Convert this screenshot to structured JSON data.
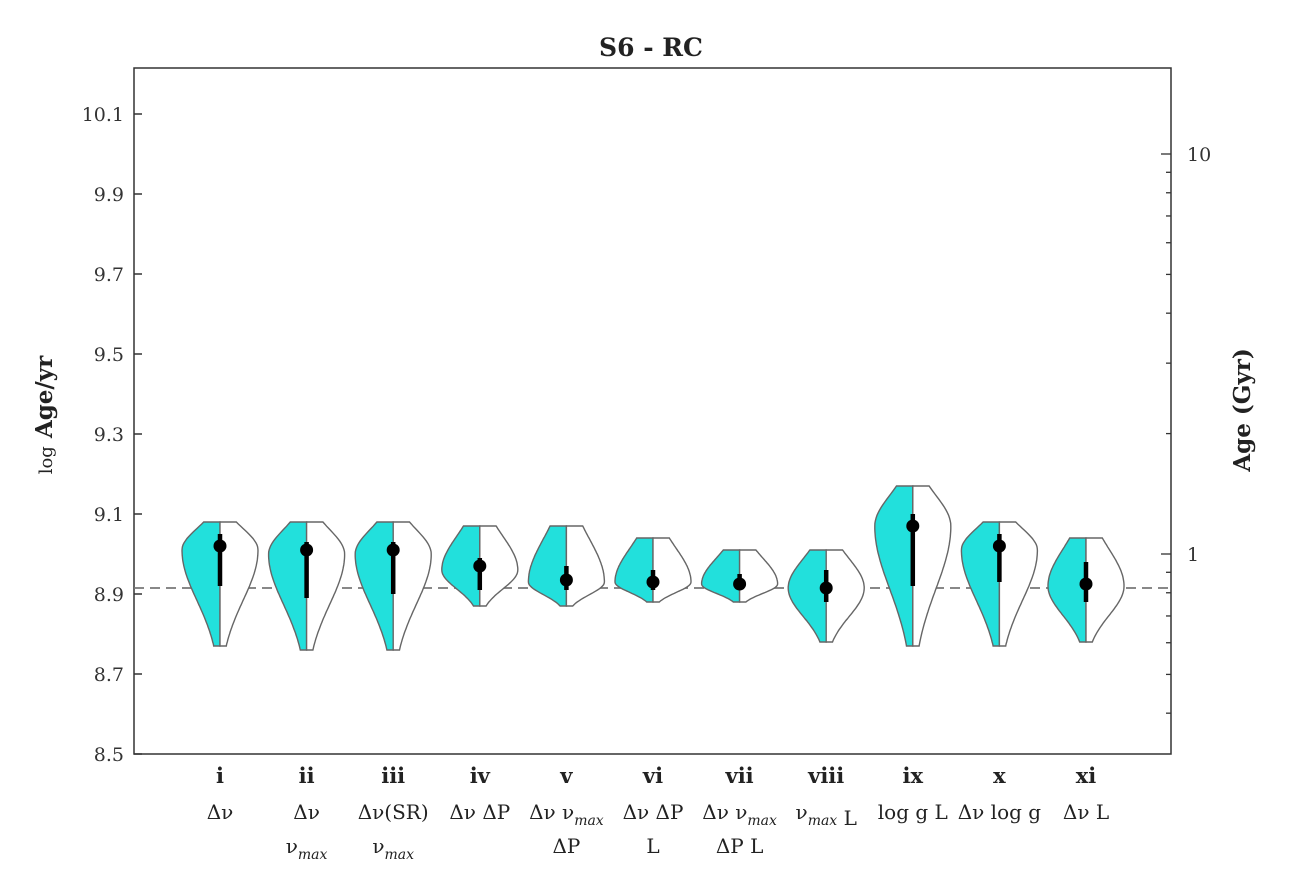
{
  "chart_data": {
    "type": "violin",
    "title": "S6 - RC",
    "ylabel_prefix": "log",
    "ylabel": "Age/yr",
    "y2label": "Age (Gyr)",
    "ylim": [
      8.5,
      10.2
    ],
    "yticks": [
      "8.5",
      "8.7",
      "8.9",
      "9.1",
      "9.3",
      "9.5",
      "9.7",
      "9.9",
      "10.1"
    ],
    "y2ticks": [
      "1",
      "10"
    ],
    "reference_value": 8.915,
    "colors": {
      "fill": "#22e0dc",
      "outline": "#666666",
      "marker": "#000000",
      "reference_line": "#777777"
    },
    "categories": [
      {
        "id": "i",
        "label_lines": [
          [
            {
              "t": "Δν"
            }
          ]
        ],
        "median": 9.02,
        "lo": 8.92,
        "hi": 9.05,
        "min": 8.77,
        "max": 9.08,
        "mode": 9.01
      },
      {
        "id": "ii",
        "label_lines": [
          [
            {
              "t": "Δν"
            }
          ],
          [
            {
              "t": "ν",
              "s": "max"
            }
          ]
        ],
        "median": 9.01,
        "lo": 8.89,
        "hi": 9.03,
        "min": 8.76,
        "max": 9.08,
        "mode": 9.0
      },
      {
        "id": "iii",
        "label_lines": [
          [
            {
              "t": "Δν(SR)"
            }
          ],
          [
            {
              "t": "ν",
              "s": "max"
            }
          ]
        ],
        "median": 9.01,
        "lo": 8.9,
        "hi": 9.03,
        "min": 8.76,
        "max": 9.08,
        "mode": 9.0
      },
      {
        "id": "iv",
        "label_lines": [
          [
            {
              "t": "Δν  ΔP"
            }
          ]
        ],
        "median": 8.97,
        "lo": 8.91,
        "hi": 8.99,
        "min": 8.87,
        "max": 9.07,
        "mode": 8.96
      },
      {
        "id": "v",
        "label_lines": [
          [
            {
              "t": "Δν  ν",
              "s": "max"
            }
          ],
          [
            {
              "t": "ΔP"
            }
          ]
        ],
        "median": 8.935,
        "lo": 8.91,
        "hi": 8.97,
        "min": 8.87,
        "max": 9.07,
        "mode": 8.93
      },
      {
        "id": "vi",
        "label_lines": [
          [
            {
              "t": "Δν  ΔP"
            }
          ],
          [
            {
              "t": "L"
            }
          ]
        ],
        "median": 8.93,
        "lo": 8.91,
        "hi": 8.96,
        "min": 8.88,
        "max": 9.04,
        "mode": 8.93
      },
      {
        "id": "vii",
        "label_lines": [
          [
            {
              "t": "Δν  ν",
              "s": "max"
            }
          ],
          [
            {
              "t": "ΔP  L"
            }
          ]
        ],
        "median": 8.925,
        "lo": 8.91,
        "hi": 8.95,
        "min": 8.88,
        "max": 9.01,
        "mode": 8.925
      },
      {
        "id": "viii",
        "label_lines": [
          [
            {
              "t": "ν",
              "s": "max"
            },
            {
              "t": "  L"
            }
          ]
        ],
        "median": 8.915,
        "lo": 8.88,
        "hi": 8.96,
        "min": 8.78,
        "max": 9.01,
        "mode": 8.915
      },
      {
        "id": "ix",
        "label_lines": [
          [
            {
              "t": "log g  L"
            }
          ]
        ],
        "median": 9.07,
        "lo": 8.92,
        "hi": 9.1,
        "min": 8.77,
        "max": 9.17,
        "mode": 9.07
      },
      {
        "id": "x",
        "label_lines": [
          [
            {
              "t": "Δν  log g"
            }
          ]
        ],
        "median": 9.02,
        "lo": 8.93,
        "hi": 9.05,
        "min": 8.77,
        "max": 9.08,
        "mode": 9.01
      },
      {
        "id": "xi",
        "label_lines": [
          [
            {
              "t": "Δν  L"
            }
          ]
        ],
        "median": 8.925,
        "lo": 8.88,
        "hi": 8.98,
        "min": 8.78,
        "max": 9.04,
        "mode": 8.92
      }
    ]
  }
}
